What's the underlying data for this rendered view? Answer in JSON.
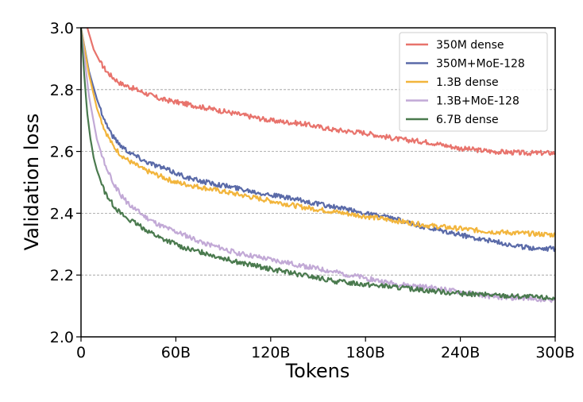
{
  "chart_data": {
    "type": "line",
    "title": "",
    "xlabel": "Tokens",
    "ylabel": "Validation loss",
    "xlim": [
      0,
      300
    ],
    "ylim": [
      2.0,
      3.0
    ],
    "x_ticks": [
      {
        "value": 0,
        "label": "0"
      },
      {
        "value": 60,
        "label": "60B"
      },
      {
        "value": 120,
        "label": "120B"
      },
      {
        "value": 180,
        "label": "180B"
      },
      {
        "value": 240,
        "label": "240B"
      },
      {
        "value": 300,
        "label": "300B"
      }
    ],
    "y_ticks": [
      {
        "value": 2.0,
        "label": "2.0"
      },
      {
        "value": 2.2,
        "label": "2.2"
      },
      {
        "value": 2.4,
        "label": "2.4"
      },
      {
        "value": 2.6,
        "label": "2.6"
      },
      {
        "value": 2.8,
        "label": "2.8"
      },
      {
        "value": 3.0,
        "label": "3.0"
      }
    ],
    "grid": "horizontal-dashed",
    "legend_position": "top-right",
    "series": [
      {
        "name": "350M dense",
        "color": "#e8736c",
        "x": [
          4,
          8,
          12,
          16,
          20,
          25,
          30,
          40,
          50,
          60,
          70,
          80,
          90,
          100,
          120,
          140,
          160,
          180,
          200,
          220,
          240,
          260,
          280,
          300
        ],
        "y": [
          3.0,
          2.93,
          2.89,
          2.86,
          2.84,
          2.82,
          2.81,
          2.79,
          2.77,
          2.76,
          2.75,
          2.74,
          2.73,
          2.72,
          2.7,
          2.69,
          2.67,
          2.66,
          2.64,
          2.63,
          2.61,
          2.6,
          2.595,
          2.595
        ]
      },
      {
        "name": "350M+MoE-128",
        "color": "#5a6aa8",
        "x": [
          0,
          5,
          10,
          15,
          20,
          25,
          30,
          40,
          50,
          60,
          70,
          80,
          100,
          120,
          140,
          160,
          180,
          200,
          220,
          240,
          260,
          280,
          300
        ],
        "y": [
          3.0,
          2.86,
          2.77,
          2.7,
          2.65,
          2.62,
          2.6,
          2.57,
          2.55,
          2.53,
          2.51,
          2.5,
          2.48,
          2.46,
          2.44,
          2.42,
          2.4,
          2.38,
          2.35,
          2.33,
          2.31,
          2.29,
          2.285
        ]
      },
      {
        "name": "1.3B dense",
        "color": "#f2b53c",
        "x": [
          0,
          5,
          10,
          15,
          20,
          25,
          30,
          40,
          50,
          60,
          70,
          80,
          100,
          120,
          140,
          160,
          180,
          200,
          220,
          240,
          260,
          280,
          300
        ],
        "y": [
          3.0,
          2.85,
          2.74,
          2.67,
          2.62,
          2.59,
          2.57,
          2.54,
          2.52,
          2.5,
          2.49,
          2.48,
          2.46,
          2.44,
          2.42,
          2.405,
          2.39,
          2.375,
          2.36,
          2.35,
          2.34,
          2.335,
          2.33
        ]
      },
      {
        "name": "1.3B+MoE-128",
        "color": "#c2a9d6",
        "x": [
          0,
          5,
          10,
          15,
          20,
          25,
          30,
          40,
          50,
          60,
          70,
          80,
          100,
          120,
          140,
          160,
          180,
          200,
          220,
          240,
          260,
          280,
          300
        ],
        "y": [
          3.0,
          2.78,
          2.64,
          2.56,
          2.5,
          2.46,
          2.43,
          2.39,
          2.36,
          2.34,
          2.32,
          2.3,
          2.27,
          2.25,
          2.23,
          2.21,
          2.19,
          2.17,
          2.16,
          2.145,
          2.13,
          2.125,
          2.12
        ]
      },
      {
        "name": "6.7B dense",
        "color": "#4a7a4e",
        "x": [
          0,
          2,
          4,
          6,
          8,
          10,
          15,
          20,
          25,
          30,
          40,
          50,
          60,
          70,
          80,
          100,
          120,
          140,
          160,
          180,
          200,
          220,
          240,
          260,
          280,
          300
        ],
        "y": [
          3.0,
          2.85,
          2.72,
          2.64,
          2.58,
          2.54,
          2.47,
          2.43,
          2.4,
          2.38,
          2.35,
          2.32,
          2.3,
          2.28,
          2.27,
          2.24,
          2.22,
          2.2,
          2.18,
          2.17,
          2.16,
          2.15,
          2.14,
          2.135,
          2.13,
          2.125
        ]
      }
    ]
  }
}
